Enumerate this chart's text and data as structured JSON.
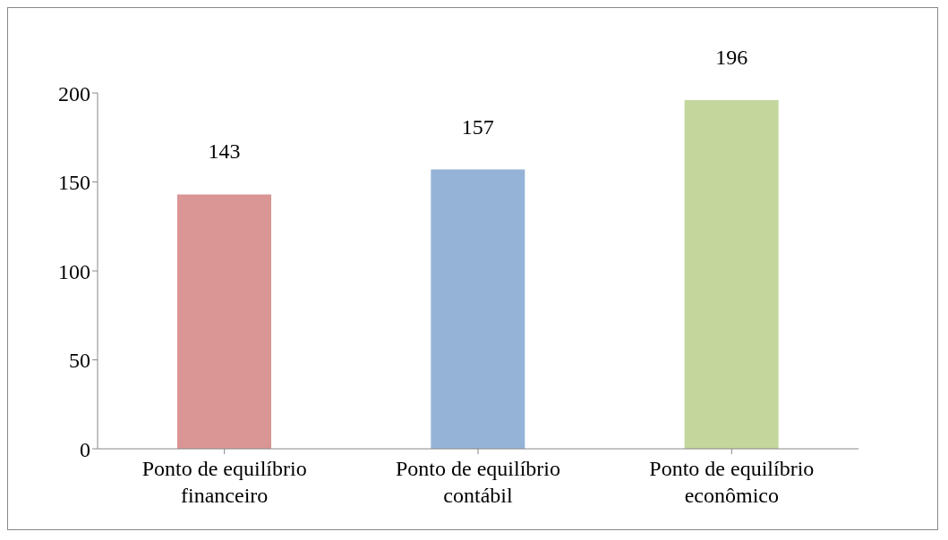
{
  "chart_data": {
    "type": "bar",
    "categories": [
      "Ponto de equilíbrio financeiro",
      "Ponto de equilíbrio contábil",
      "Ponto de equilíbrio econômico"
    ],
    "values": [
      143,
      157,
      196
    ],
    "colors": [
      "#d99694",
      "#95b3d7",
      "#c3d69b"
    ],
    "ylim": [
      0,
      200
    ],
    "yticks": [
      0,
      50,
      100,
      150,
      200
    ],
    "grid": false,
    "legend": false,
    "data_labels": true
  }
}
